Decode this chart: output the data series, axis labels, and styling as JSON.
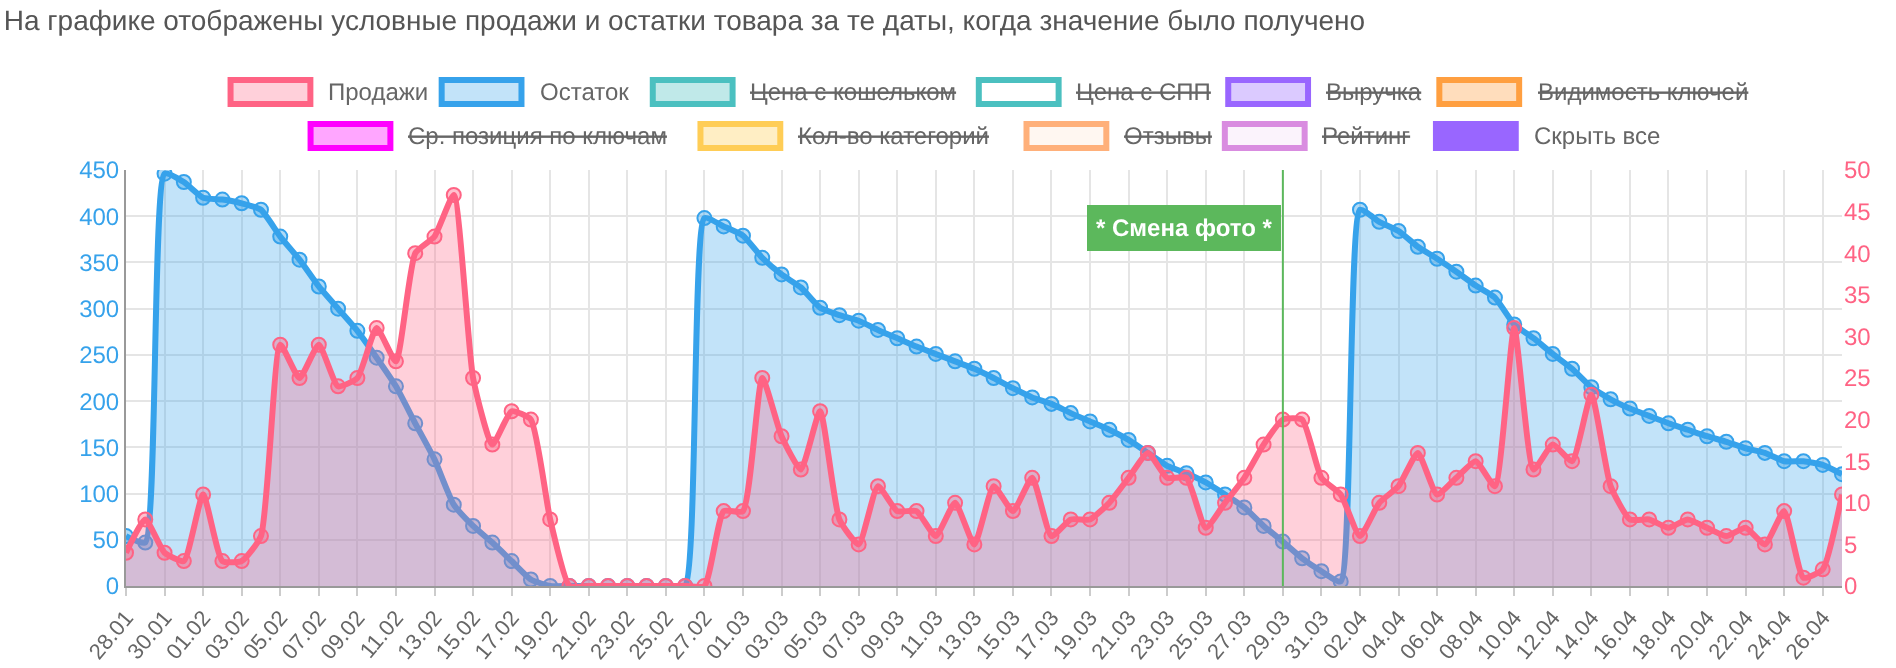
{
  "chart_data": {
    "type": "area",
    "title": "На графике отображены условные продажи и остатки товара за те даты, когда значение было получено",
    "categories": [
      "28.01",
      null,
      "30.01",
      null,
      "01.02",
      null,
      "03.02",
      null,
      "05.02",
      null,
      "07.02",
      null,
      "09.02",
      null,
      "11.02",
      null,
      "13.02",
      null,
      "15.02",
      null,
      "17.02",
      null,
      "19.02",
      null,
      "21.02",
      null,
      "23.02",
      null,
      "25.02",
      null,
      "27.02",
      null,
      "01.03",
      null,
      "03.03",
      null,
      "05.03",
      null,
      "07.03",
      null,
      "09.03",
      null,
      "11.03",
      null,
      "13.03",
      null,
      "15.03",
      null,
      "17.03",
      null,
      "19.03",
      null,
      "21.03",
      null,
      "23.03",
      null,
      "25.03",
      null,
      "27.03",
      null,
      "29.03",
      null,
      "31.03",
      null,
      "02.04",
      null,
      "04.04",
      null,
      "06.04",
      null,
      "08.04",
      null,
      "10.04",
      null,
      "12.04",
      null,
      "14.04",
      null,
      "16.04",
      null,
      "18.04",
      null,
      "20.04",
      null,
      "22.04",
      null,
      "24.04",
      null,
      "26.04",
      null
    ],
    "series": [
      {
        "name": "Продажи",
        "color": "#ff6384",
        "axis": "y2",
        "values": [
          4,
          8,
          4,
          3,
          11,
          3,
          3,
          6,
          29,
          25,
          29,
          24,
          25,
          31,
          27,
          40,
          42,
          47,
          25,
          17,
          21,
          20,
          8,
          0,
          0,
          0,
          0,
          0,
          0,
          0,
          0,
          9,
          9,
          25,
          18,
          14,
          21,
          8,
          5,
          12,
          9,
          9,
          6,
          10,
          5,
          12,
          9,
          13,
          6,
          8,
          8,
          10,
          13,
          16,
          13,
          13,
          7,
          10,
          13,
          17,
          20,
          20,
          13,
          11,
          6,
          10,
          12,
          16,
          11,
          13,
          15,
          12,
          31,
          14,
          17,
          15,
          23,
          12,
          8,
          8,
          7,
          8,
          7,
          6,
          7,
          5,
          9,
          1,
          2,
          11
        ]
      },
      {
        "name": "Остаток",
        "color": "#36a2eb",
        "values": [
          54,
          47,
          446,
          437,
          420,
          418,
          414,
          407,
          378,
          353,
          324,
          300,
          276,
          247,
          216,
          176,
          137,
          88,
          65,
          47,
          27,
          7,
          0,
          0,
          0,
          0,
          0,
          0,
          0,
          0,
          398,
          389,
          379,
          355,
          337,
          323,
          301,
          293,
          287,
          277,
          268,
          259,
          251,
          243,
          235,
          225,
          214,
          204,
          197,
          187,
          178,
          169,
          158,
          144,
          130,
          122,
          112,
          99,
          85,
          65,
          48,
          30,
          16,
          5,
          407,
          394,
          384,
          367,
          354,
          340,
          325,
          312,
          283,
          268,
          251,
          235,
          215,
          202,
          192,
          184,
          176,
          169,
          162,
          156,
          149,
          144,
          135,
          135,
          131,
          121
        ]
      }
    ],
    "annotations": [
      "Цена с кошельком",
      "Цена с СПП",
      "Выручка",
      "Видимость ключей",
      "Ср. позиция по ключам",
      "Кол-во категорий",
      "Отзывы",
      "Рейтинг",
      "Скрыть все"
    ],
    "ylim": [
      0,
      450
    ],
    "yticks": [
      0,
      50,
      100,
      150,
      200,
      250,
      300,
      350,
      400,
      450
    ],
    "y2lim": [
      0,
      50
    ],
    "y2ticks": [
      0,
      5,
      10,
      15,
      20,
      25,
      30,
      35,
      40,
      45,
      50
    ],
    "ref_lines": [
      {
        "axis": "x",
        "value": "29.03",
        "label": "* Смена фото *",
        "color": "#5cb85c"
      }
    ],
    "grid": true,
    "legend": "top",
    "marker": "circle",
    "line_style": "solid"
  }
}
